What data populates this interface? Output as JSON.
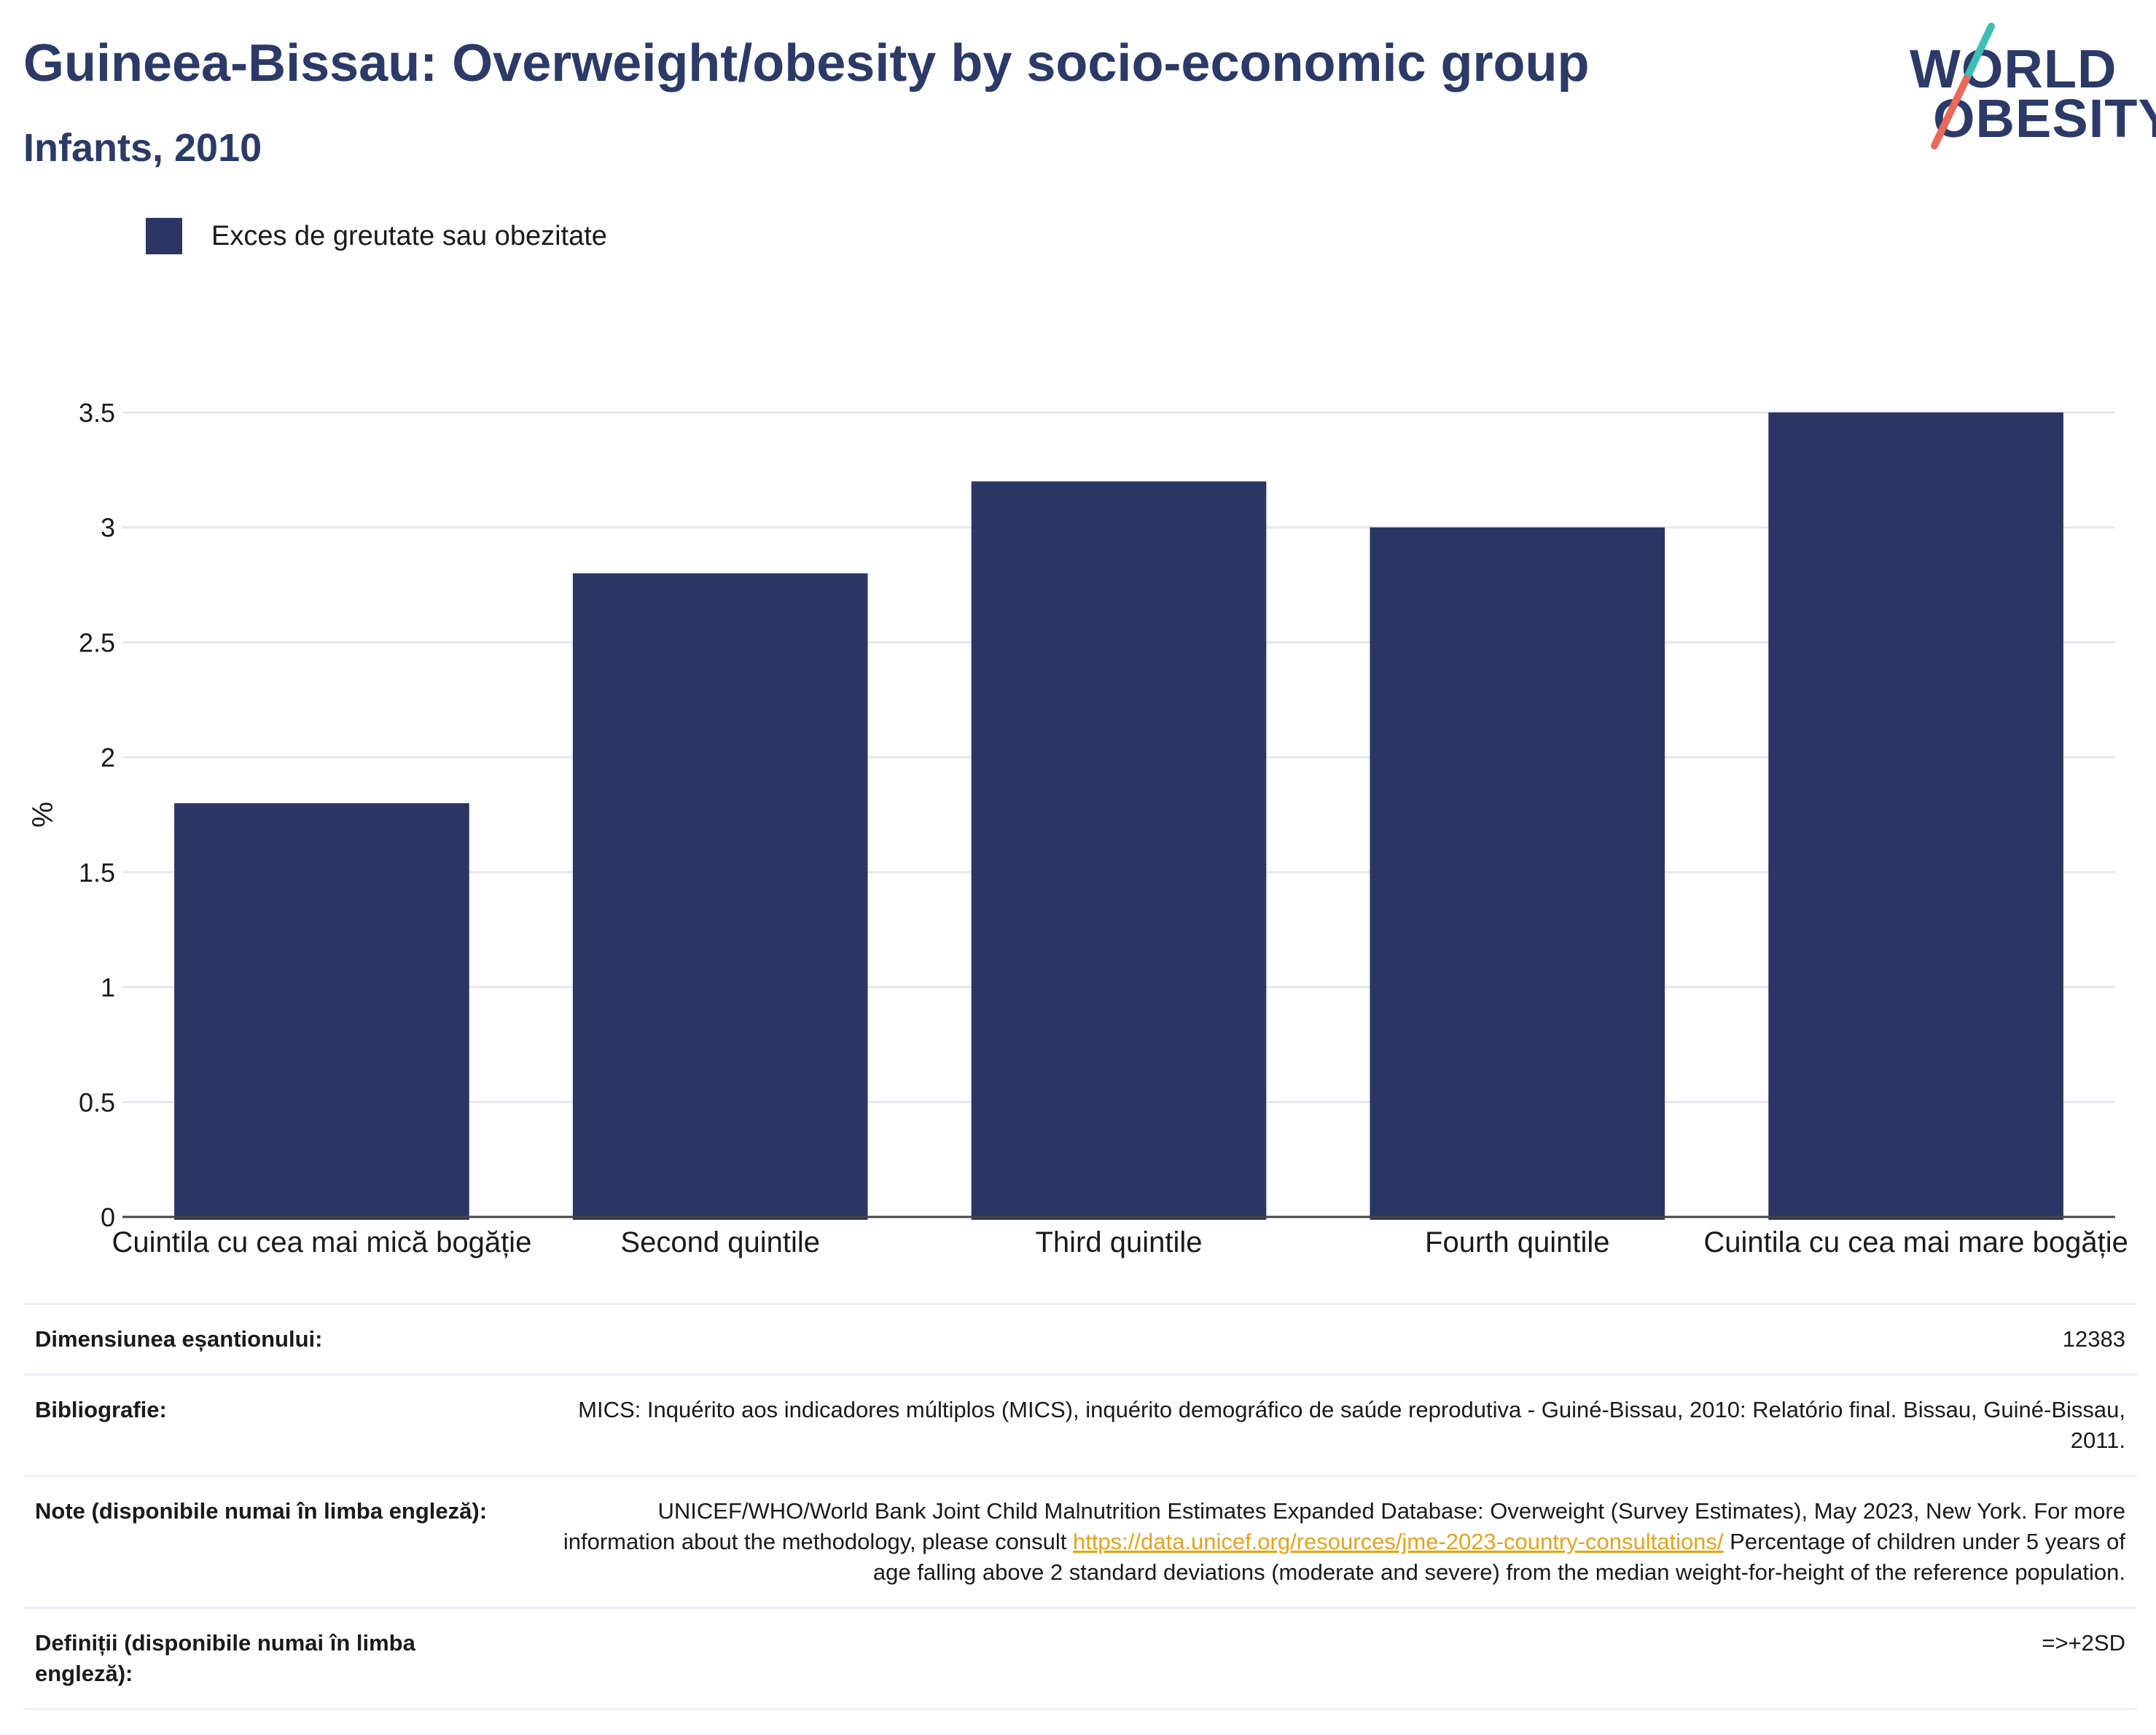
{
  "header": {
    "title": "Guineea-Bissau: Overweight/obesity by socio-economic group",
    "subtitle": "Infants, 2010"
  },
  "logo": {
    "line1": "WORLD",
    "line2": "OBESITY",
    "colors": {
      "text": "#2b3a67",
      "slash_top": "#3cbfb4",
      "slash_bottom": "#e96a5a"
    }
  },
  "legend": {
    "label": "Exces de greutate sau obezitate",
    "color": "#2b3664"
  },
  "chart_data": {
    "type": "bar",
    "categories": [
      "Cuintila cu cea mai mică bogăție",
      "Second quintile",
      "Third quintile",
      "Fourth quintile",
      "Cuintila cu cea mai mare bogăție"
    ],
    "series": [
      {
        "name": "Exces de greutate sau obezitate",
        "values": [
          1.8,
          2.8,
          3.2,
          3.0,
          3.5
        ],
        "color": "#2b3664"
      }
    ],
    "ylabel": "%",
    "ylim": [
      0,
      3.5
    ],
    "yticks": [
      "0",
      "0.5",
      "1",
      "1.5",
      "2",
      "2.5",
      "3",
      "3.5"
    ],
    "grid": true,
    "legend_position": "top-left"
  },
  "footer": {
    "rows": [
      {
        "label": "Dimensiunea eșantionului:",
        "value": "12383"
      },
      {
        "label": "Bibliografie:",
        "value": "MICS: Inquérito aos indicadores múltiplos (MICS), inquérito demográfico de saúde reprodutiva - Guiné-Bissau, 2010: Relatório final. Bissau, Guiné-Bissau, 2011."
      },
      {
        "label": "Note (disponibile numai în limba engleză):",
        "value_before": "UNICEF/WHO/World Bank Joint Child Malnutrition Estimates Expanded Database: Overweight (Survey Estimates), May 2023, New York. For more information about the methodology, please consult ",
        "link": "https://data.unicef.org/resources/jme-2023-country-consultations/",
        "value_after": " Percentage of children under 5 years of age falling above 2 standard deviations (moderate and severe) from the median weight-for-height of the reference population."
      },
      {
        "label": "Definiții (disponibile numai în limba engleză):",
        "value": "=>+2SD"
      }
    ]
  }
}
